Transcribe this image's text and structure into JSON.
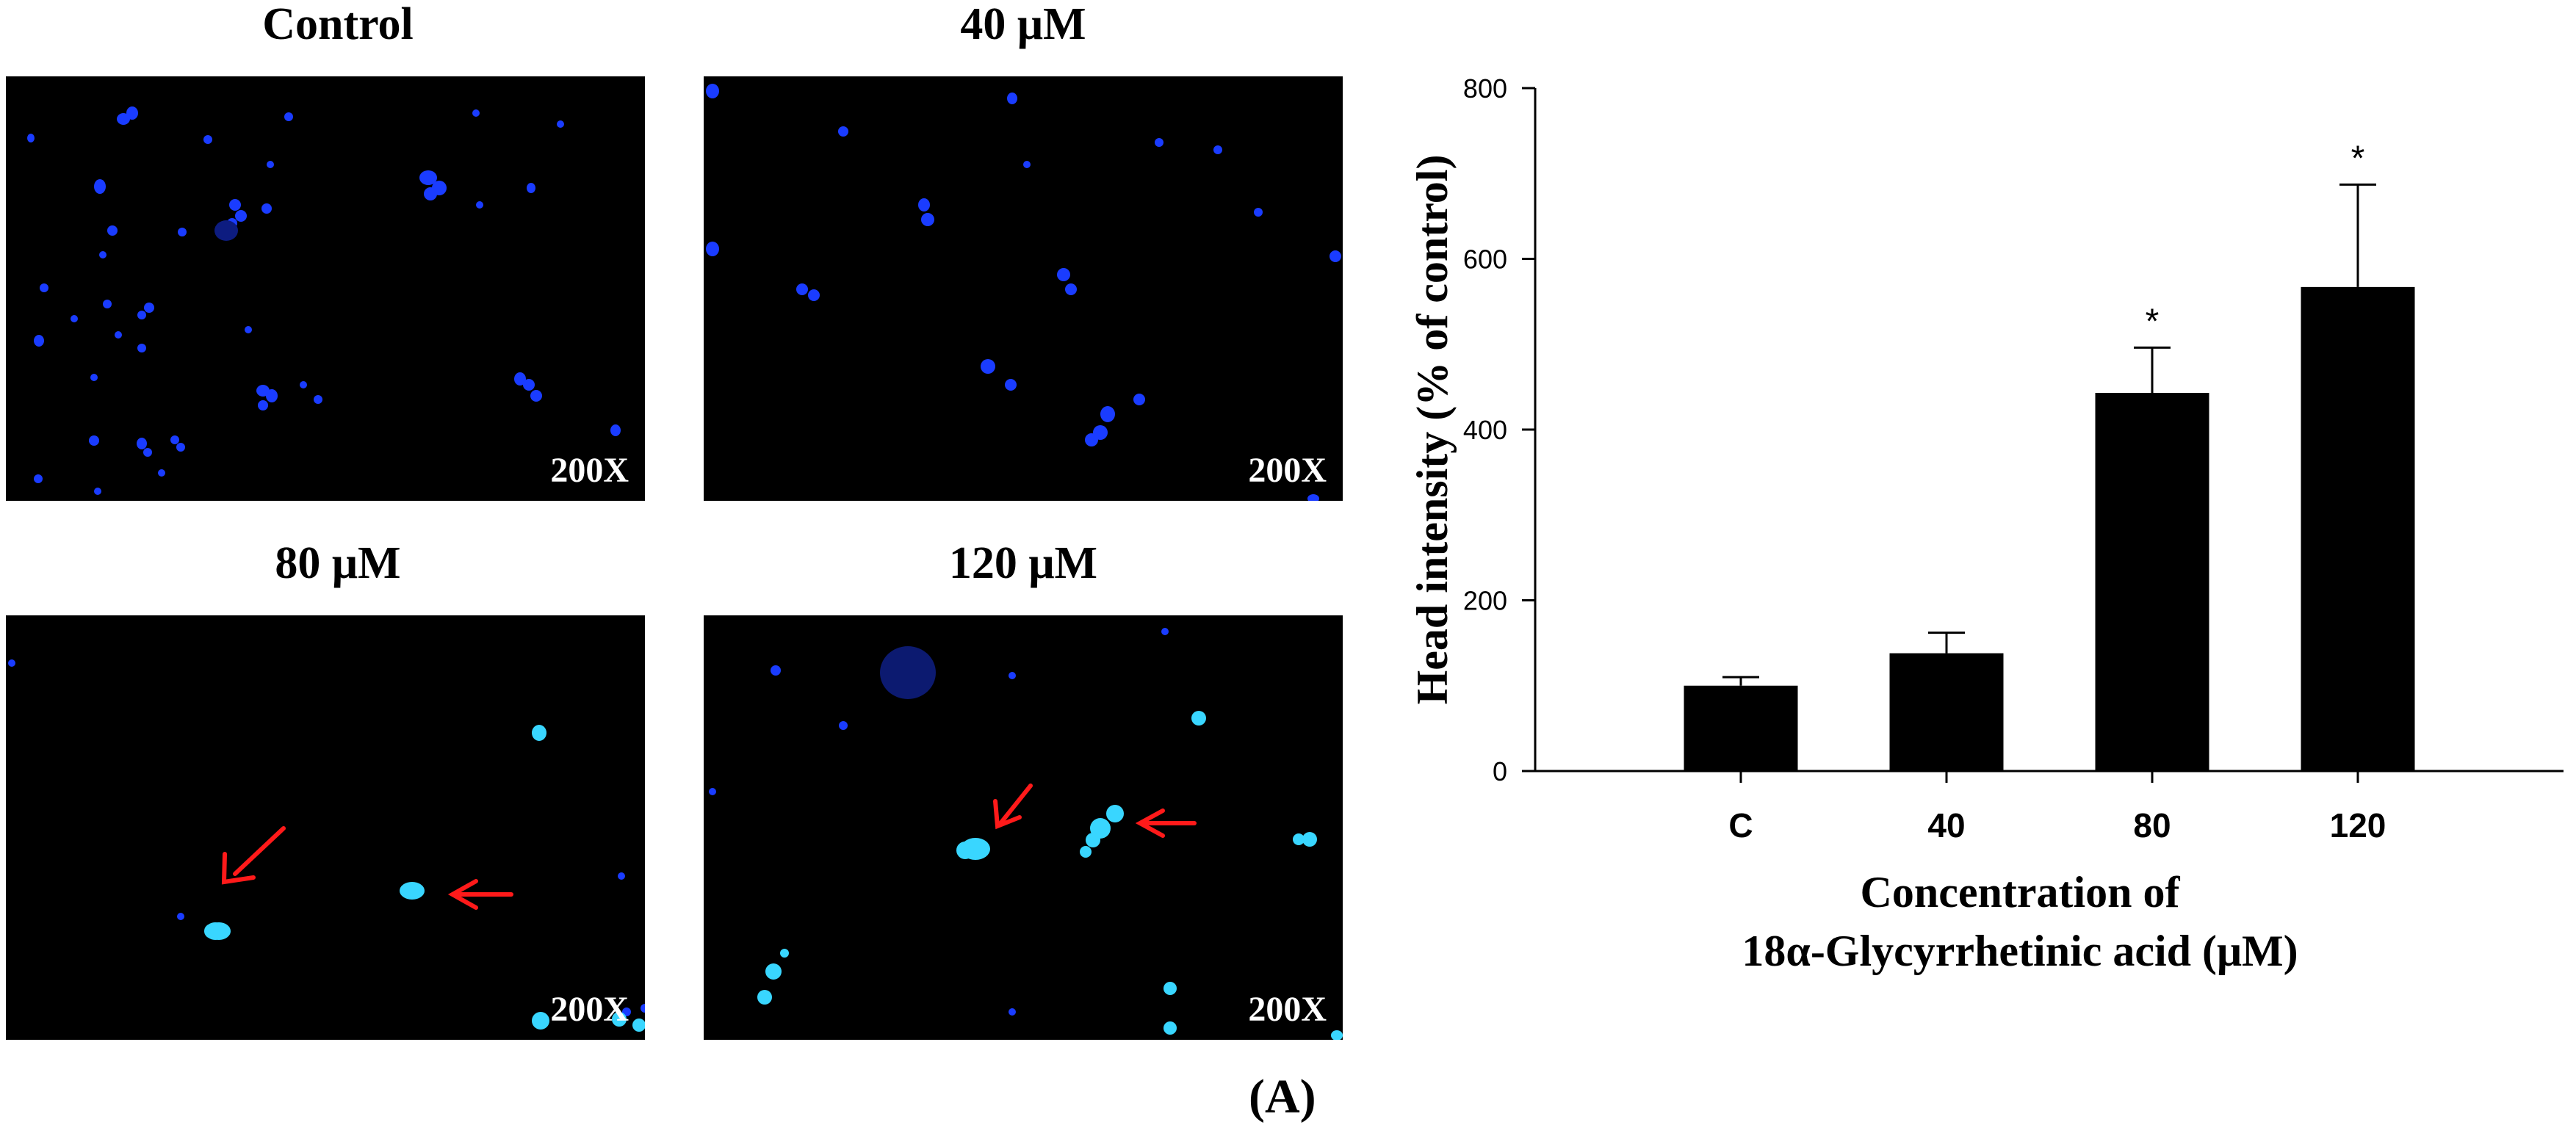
{
  "panels": [
    {
      "title": "Control",
      "magnification": "200X"
    },
    {
      "title": "40 μM",
      "magnification": "200X"
    },
    {
      "title": "80 μM",
      "magnification": "200X"
    },
    {
      "title": "120 μM",
      "magnification": "200X"
    }
  ],
  "colors": {
    "nucleus": "#1a3cff",
    "nucleus_bright": "#39d6ff",
    "arrow": "#ff1a1a",
    "bar": "#000000"
  },
  "figure_label": "(A)",
  "chart_data": {
    "type": "bar",
    "categories": [
      "C",
      "40",
      "80",
      "120"
    ],
    "values": [
      100,
      138,
      443,
      567
    ],
    "errors": [
      10,
      24,
      53,
      120
    ],
    "significance": [
      "",
      "",
      "*",
      "*"
    ],
    "ylabel": "Head intensity (% of control)",
    "xlabel_line1": "Concentration of",
    "xlabel_line2": "18α-Glycyrrhetinic acid (μM)",
    "ylim": [
      0,
      800
    ],
    "yticks": [
      0,
      200,
      400,
      600,
      800
    ],
    "grid": false,
    "legend": "none"
  }
}
